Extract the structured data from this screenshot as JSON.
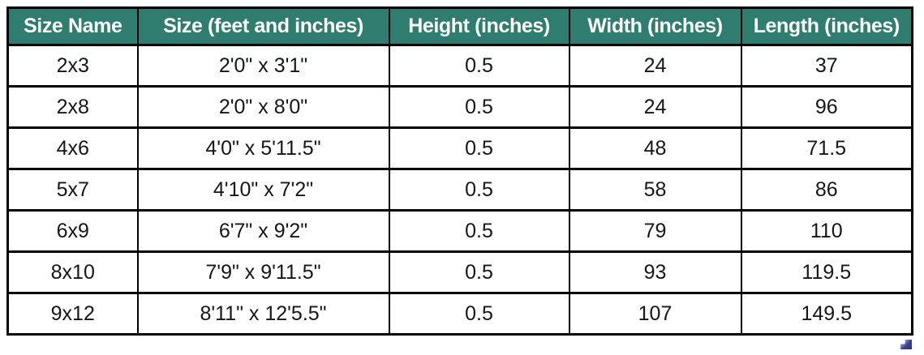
{
  "chart_data": {
    "type": "table",
    "title": "",
    "columns": [
      "Size Name",
      "Size (feet and inches)",
      "Height (inches)",
      "Width (inches)",
      "Length (inches)"
    ],
    "rows": [
      [
        "2x3",
        "2'0\" x 3'1\"",
        "0.5",
        "24",
        "37"
      ],
      [
        "2x8",
        "2'0\" x 8'0\"",
        "0.5",
        "24",
        "96"
      ],
      [
        "4x6",
        "4'0\" x 5'11.5\"",
        "0.5",
        "48",
        "71.5"
      ],
      [
        "5x7",
        "4'10\" x 7'2\"",
        "0.5",
        "58",
        "86"
      ],
      [
        "6x9",
        "6'7\" x 9'2\"",
        "0.5",
        "79",
        "110"
      ],
      [
        "8x10",
        "7'9\" x 9'11.5\"",
        "0.5",
        "93",
        "119.5"
      ],
      [
        "9x12",
        "8'11\" x 12'5.5\"",
        "0.5",
        "107",
        "149.5"
      ]
    ],
    "layout": {
      "header_bg": "#2E7D6F",
      "header_text_color": "#FFFFFF",
      "body_bg": "#FFFFFF",
      "body_text_color": "#161616",
      "border_color": "#000000",
      "grid": "on"
    }
  },
  "corner_mark": {
    "icon": "resize-handle-icon",
    "color": "#39418F"
  }
}
